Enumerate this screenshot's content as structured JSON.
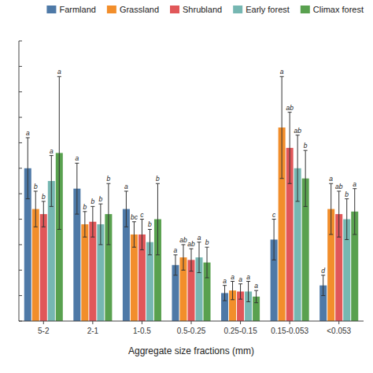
{
  "chart_data": {
    "type": "bar",
    "xlabel": "Aggregate size fractions (mm)",
    "categories": [
      "5-2",
      "2-1",
      "1-0.5",
      "0.5-0.25",
      "0.25-0.15",
      "0.15-0.053",
      "<0.053"
    ],
    "series": [
      {
        "name": "Farmland",
        "values": [
          30.0,
          26.0,
          22.0,
          11.0,
          5.5,
          16.0,
          7.0
        ],
        "errors": [
          6.0,
          5.0,
          3.5,
          2.0,
          1.5,
          4.0,
          2.0
        ],
        "labels": [
          "a",
          "a",
          "a",
          "a",
          "a",
          "c",
          "d"
        ]
      },
      {
        "name": "Grassland",
        "values": [
          22.0,
          19.0,
          17.0,
          12.5,
          6.0,
          38.0,
          22.0
        ],
        "errors": [
          3.5,
          2.5,
          2.5,
          2.5,
          1.8,
          10.0,
          5.0
        ],
        "labels": [
          "b",
          "b",
          "bc",
          "ab",
          "a",
          "a",
          "a"
        ]
      },
      {
        "name": "Shrubland",
        "values": [
          21.0,
          19.5,
          17.0,
          12.0,
          5.8,
          34.0,
          21.0
        ],
        "errors": [
          2.5,
          3.0,
          3.0,
          2.2,
          1.5,
          7.0,
          4.5
        ],
        "labels": [
          "b",
          "b",
          "c",
          "ab",
          "a",
          "ab",
          "ab"
        ]
      },
      {
        "name": "Early forest",
        "values": [
          27.5,
          19.0,
          15.5,
          12.5,
          5.8,
          30.0,
          20.0
        ],
        "errors": [
          5.0,
          4.0,
          2.5,
          3.0,
          2.0,
          6.5,
          4.0
        ],
        "labels": [
          "a",
          "b",
          "b",
          "a",
          "a",
          "ab",
          "b"
        ]
      },
      {
        "name": "Climax forest",
        "values": [
          33.0,
          21.0,
          20.0,
          11.5,
          4.8,
          28.0,
          21.5
        ],
        "errors": [
          15.0,
          6.0,
          7.0,
          3.0,
          1.2,
          5.5,
          4.5
        ],
        "labels": [
          "a",
          "b",
          "b",
          "b",
          "a",
          "b",
          "a"
        ]
      }
    ],
    "ylim": [
      0,
      55
    ],
    "yticks": [
      0,
      5,
      10,
      15,
      20,
      25,
      30,
      35,
      40,
      45,
      50,
      55
    ],
    "tick_labels": "x",
    "grid": false,
    "legend": "upper right"
  }
}
